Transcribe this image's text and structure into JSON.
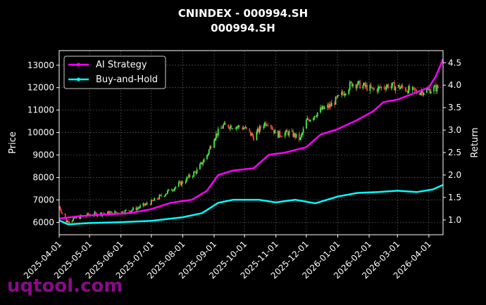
{
  "chart_data": {
    "type": "line",
    "title": "CNINDEX - 000994.SH",
    "subtitle": "000994.SH",
    "ylabel": "Price",
    "y2label": "Return",
    "x_range": [
      "2025-04-01",
      "2026-04-15"
    ],
    "ylim": [
      5450,
      13650
    ],
    "y2lim": [
      0.67,
      4.77
    ],
    "x_ticks": [
      "2025-04-01",
      "2025-05-01",
      "2025-06-01",
      "2025-07-01",
      "2025-08-01",
      "2025-09-01",
      "2025-10-01",
      "2025-11-01",
      "2025-12-01",
      "2026-01-01",
      "2026-02-01",
      "2026-03-01",
      "2026-04-01"
    ],
    "y_ticks": [
      6000,
      7000,
      8000,
      9000,
      10000,
      11000,
      12000,
      13000
    ],
    "y2_ticks": [
      1.0,
      1.5,
      2.0,
      2.5,
      3.0,
      3.5,
      4.0,
      4.5
    ],
    "grid": true,
    "legend_position": "top-left",
    "price_candles_close": [
      {
        "x": "2025-04-01",
        "y": 6700
      },
      {
        "x": "2025-04-08",
        "y": 6050
      },
      {
        "x": "2025-04-15",
        "y": 6150
      },
      {
        "x": "2025-04-22",
        "y": 6250
      },
      {
        "x": "2025-05-01",
        "y": 6350
      },
      {
        "x": "2025-05-15",
        "y": 6400
      },
      {
        "x": "2025-06-01",
        "y": 6450
      },
      {
        "x": "2025-06-15",
        "y": 6600
      },
      {
        "x": "2025-07-01",
        "y": 6900
      },
      {
        "x": "2025-07-15",
        "y": 7300
      },
      {
        "x": "2025-08-01",
        "y": 7800
      },
      {
        "x": "2025-08-15",
        "y": 8300
      },
      {
        "x": "2025-08-25",
        "y": 9000
      },
      {
        "x": "2025-09-01",
        "y": 9800
      },
      {
        "x": "2025-09-10",
        "y": 10300
      },
      {
        "x": "2025-09-20",
        "y": 10300
      },
      {
        "x": "2025-10-01",
        "y": 10200
      },
      {
        "x": "2025-10-10",
        "y": 9800
      },
      {
        "x": "2025-10-20",
        "y": 10400
      },
      {
        "x": "2025-10-25",
        "y": 10500
      },
      {
        "x": "2025-11-01",
        "y": 9900
      },
      {
        "x": "2025-11-15",
        "y": 10000
      },
      {
        "x": "2025-11-25",
        "y": 9700
      },
      {
        "x": "2025-12-01",
        "y": 10500
      },
      {
        "x": "2025-12-15",
        "y": 11000
      },
      {
        "x": "2025-12-25",
        "y": 11200
      },
      {
        "x": "2026-01-05",
        "y": 11700
      },
      {
        "x": "2026-01-15",
        "y": 12200
      },
      {
        "x": "2026-01-25",
        "y": 12100
      },
      {
        "x": "2026-02-05",
        "y": 11900
      },
      {
        "x": "2026-02-20",
        "y": 12100
      },
      {
        "x": "2026-03-05",
        "y": 12000
      },
      {
        "x": "2026-03-20",
        "y": 11800
      },
      {
        "x": "2026-04-01",
        "y": 11900
      },
      {
        "x": "2026-04-10",
        "y": 12000
      }
    ],
    "series": [
      {
        "name": "AI Strategy",
        "color": "#ff00ff",
        "points": [
          {
            "x": "2025-04-01",
            "y": 1.03
          },
          {
            "x": "2025-04-20",
            "y": 1.08
          },
          {
            "x": "2025-05-15",
            "y": 1.12
          },
          {
            "x": "2025-06-10",
            "y": 1.15
          },
          {
            "x": "2025-07-01",
            "y": 1.24
          },
          {
            "x": "2025-07-20",
            "y": 1.38
          },
          {
            "x": "2025-08-10",
            "y": 1.45
          },
          {
            "x": "2025-08-25",
            "y": 1.65
          },
          {
            "x": "2025-09-05",
            "y": 2.0
          },
          {
            "x": "2025-09-20",
            "y": 2.1
          },
          {
            "x": "2025-10-10",
            "y": 2.15
          },
          {
            "x": "2025-10-25",
            "y": 2.45
          },
          {
            "x": "2025-11-10",
            "y": 2.5
          },
          {
            "x": "2025-12-01",
            "y": 2.62
          },
          {
            "x": "2025-12-15",
            "y": 2.9
          },
          {
            "x": "2026-01-01",
            "y": 3.02
          },
          {
            "x": "2026-01-20",
            "y": 3.22
          },
          {
            "x": "2026-02-05",
            "y": 3.42
          },
          {
            "x": "2026-02-15",
            "y": 3.62
          },
          {
            "x": "2026-03-01",
            "y": 3.68
          },
          {
            "x": "2026-03-15",
            "y": 3.8
          },
          {
            "x": "2026-04-01",
            "y": 3.95
          },
          {
            "x": "2026-04-08",
            "y": 4.2
          },
          {
            "x": "2026-04-15",
            "y": 4.58
          }
        ]
      },
      {
        "name": "Buy-and-Hold",
        "color": "#00ffff",
        "points": [
          {
            "x": "2025-04-01",
            "y": 0.99
          },
          {
            "x": "2025-04-10",
            "y": 0.9
          },
          {
            "x": "2025-05-01",
            "y": 0.93
          },
          {
            "x": "2025-06-01",
            "y": 0.95
          },
          {
            "x": "2025-07-01",
            "y": 0.98
          },
          {
            "x": "2025-08-01",
            "y": 1.06
          },
          {
            "x": "2025-08-20",
            "y": 1.15
          },
          {
            "x": "2025-09-05",
            "y": 1.38
          },
          {
            "x": "2025-09-20",
            "y": 1.45
          },
          {
            "x": "2025-10-15",
            "y": 1.45
          },
          {
            "x": "2025-11-01",
            "y": 1.39
          },
          {
            "x": "2025-11-20",
            "y": 1.45
          },
          {
            "x": "2025-12-10",
            "y": 1.37
          },
          {
            "x": "2026-01-01",
            "y": 1.52
          },
          {
            "x": "2026-01-20",
            "y": 1.6
          },
          {
            "x": "2026-02-10",
            "y": 1.62
          },
          {
            "x": "2026-03-01",
            "y": 1.65
          },
          {
            "x": "2026-03-20",
            "y": 1.62
          },
          {
            "x": "2026-04-05",
            "y": 1.68
          },
          {
            "x": "2026-04-15",
            "y": 1.78
          }
        ]
      }
    ]
  },
  "watermark": "uqtool.com"
}
